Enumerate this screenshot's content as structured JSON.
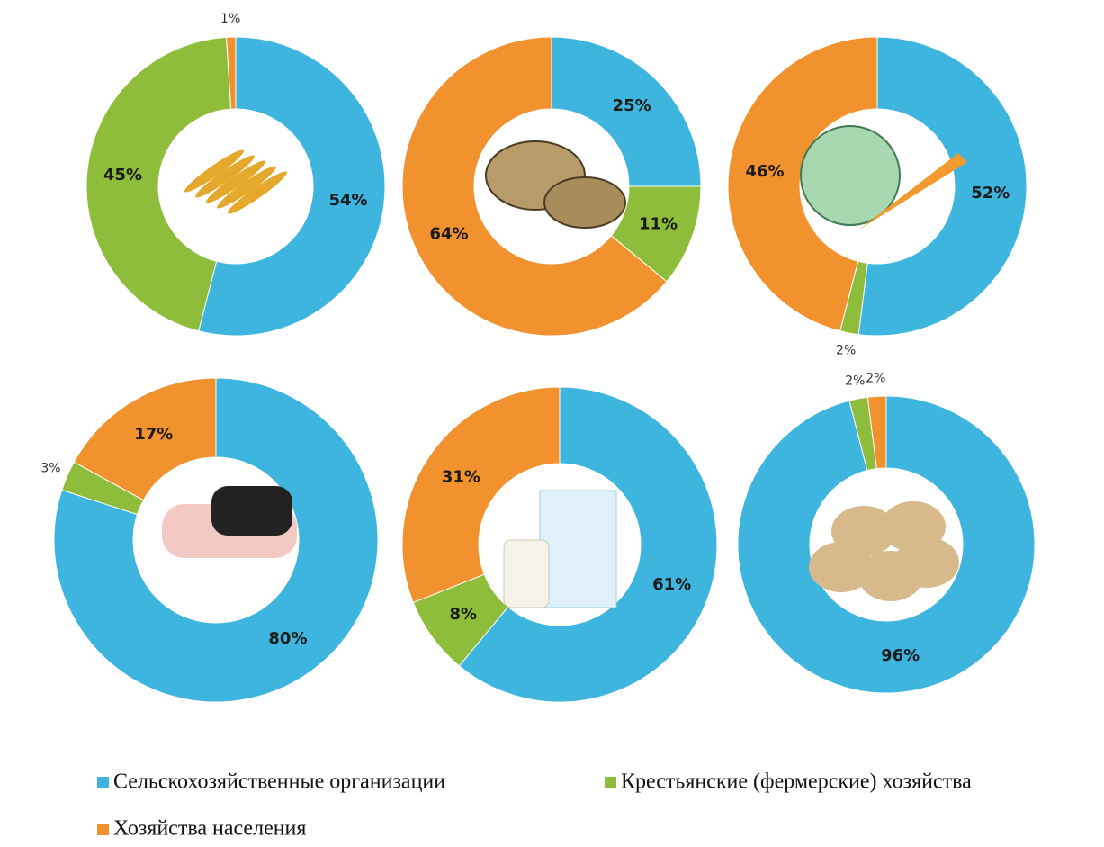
{
  "chart_data": [
    {
      "type": "donut",
      "values": [
        54,
        45,
        1
      ],
      "value_labels": [
        "54%",
        "45%",
        "1%"
      ]
    },
    {
      "type": "donut",
      "values": [
        25,
        11,
        64
      ],
      "value_labels": [
        "25%",
        "11%",
        "64%"
      ]
    },
    {
      "type": "donut",
      "values": [
        52,
        2,
        46
      ],
      "value_labels": [
        "52%",
        "2%",
        "46%"
      ]
    },
    {
      "type": "donut",
      "values": [
        80,
        3,
        17
      ],
      "value_labels": [
        "80%",
        "3%",
        "17%"
      ]
    },
    {
      "type": "donut",
      "values": [
        61,
        8,
        31
      ],
      "value_labels": [
        "61%",
        "8%",
        "31%"
      ]
    },
    {
      "type": "donut",
      "values": [
        96,
        2,
        2
      ],
      "value_labels": [
        "96%",
        "2%",
        "2%"
      ]
    }
  ],
  "legend": {
    "items": [
      {
        "name": "Сельскохозяйственные организации",
        "color": "#3db5de"
      },
      {
        "name": "Крестьянские (фермерские) хозяйства",
        "color": "#8dbd3a"
      },
      {
        "name": "Хозяйства населения",
        "color": "#f2922e"
      }
    ]
  }
}
